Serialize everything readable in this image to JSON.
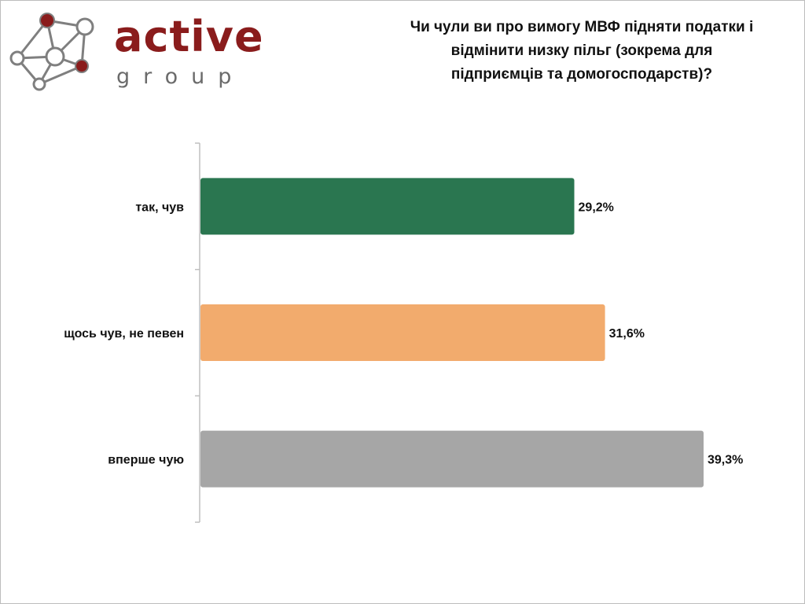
{
  "logo": {
    "word": "active",
    "sub": "group",
    "colors": {
      "brand": "#8a1c1c",
      "sub": "#6b6b6b",
      "network": "#7f7f7f"
    }
  },
  "chart_data": {
    "type": "bar",
    "orientation": "horizontal",
    "title_lines": [
      "Чи чули ви про вимогу МВФ підняти податки і",
      "відмінити низку пільг (зокрема для",
      "підприємців та домогосподарств)?"
    ],
    "categories": [
      "так, чув",
      "щось чув, не певен",
      "вперше чую"
    ],
    "values": [
      29.2,
      31.6,
      39.3
    ],
    "value_labels": [
      "29,2%",
      "31,6%",
      "39,3%"
    ],
    "colors": [
      "#2a7650",
      "#f2ab6d",
      "#a6a6a6"
    ],
    "xlim": [
      0,
      40
    ],
    "grid": false,
    "legend": "none"
  }
}
